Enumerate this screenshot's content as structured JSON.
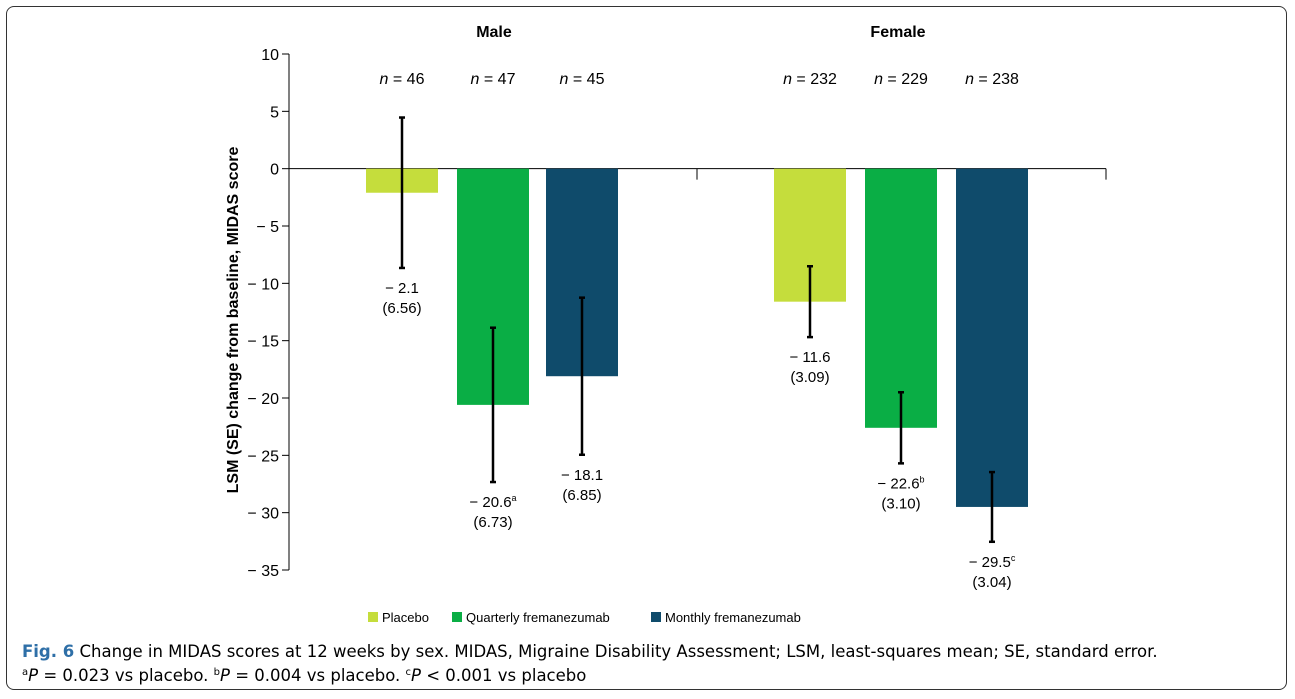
{
  "chart_data": {
    "type": "bar",
    "ylabel": "LSM (SE) change from baseline, MIDAS score",
    "ylim": [
      -35,
      10
    ],
    "yticks": [
      10,
      5,
      0,
      -5,
      -10,
      -15,
      -20,
      -25,
      -30,
      -35
    ],
    "ytick_labels": [
      "10",
      "5",
      "0",
      "− 5",
      "− 10",
      "− 15",
      "− 20",
      "− 25",
      "− 30",
      "− 35"
    ],
    "grid": false,
    "legend_position": "bottom-center",
    "groups": [
      {
        "name": "Male",
        "bars": [
          {
            "series": "Placebo",
            "n_label": "n = 46",
            "value": -2.1,
            "se": 6.56,
            "label_value": "− 2.1",
            "label_se": "(6.56)",
            "superscript": ""
          },
          {
            "series": "Quarterly fremanezumab",
            "n_label": "n = 47",
            "value": -20.6,
            "se": 6.73,
            "label_value": "− 20.6",
            "label_se": "(6.73)",
            "superscript": "a"
          },
          {
            "series": "Monthly fremanezumab",
            "n_label": "n = 45",
            "value": -18.1,
            "se": 6.85,
            "label_value": "− 18.1",
            "label_se": "(6.85)",
            "superscript": ""
          }
        ]
      },
      {
        "name": "Female",
        "bars": [
          {
            "series": "Placebo",
            "n_label": "n = 232",
            "value": -11.6,
            "se": 3.09,
            "label_value": "− 11.6",
            "label_se": "(3.09)",
            "superscript": ""
          },
          {
            "series": "Quarterly fremanezumab",
            "n_label": "n = 229",
            "value": -22.6,
            "se": 3.1,
            "label_value": "− 22.6",
            "label_se": "(3.10)",
            "superscript": "b"
          },
          {
            "series": "Monthly fremanezumab",
            "n_label": "n = 238",
            "value": -29.5,
            "se": 3.04,
            "label_value": "− 29.5",
            "label_se": "(3.04)",
            "superscript": "c"
          }
        ]
      }
    ],
    "series": [
      {
        "name": "Placebo",
        "color": "#c5dd3c"
      },
      {
        "name": "Quarterly fremanezumab",
        "color": "#0aae45"
      },
      {
        "name": "Monthly fremanezumab",
        "color": "#0f4b6b"
      }
    ]
  },
  "caption": {
    "fig_label": "Fig. 6",
    "text_line1": " Change in MIDAS scores at 12 weeks by sex. MIDAS, Migraine Disability Assessment; LSM, least-squares mean; SE, standard error.",
    "note_a_sup": "a",
    "note_a_p": "P",
    "note_a_text": " = 0.023  vs  placebo. ",
    "note_b_sup": "b",
    "note_b_p": "P",
    "note_b_text": " = 0.004  vs  placebo. ",
    "note_c_sup": "c",
    "note_c_p": "P",
    "note_c_text": " < 0.001  vs  placebo"
  }
}
